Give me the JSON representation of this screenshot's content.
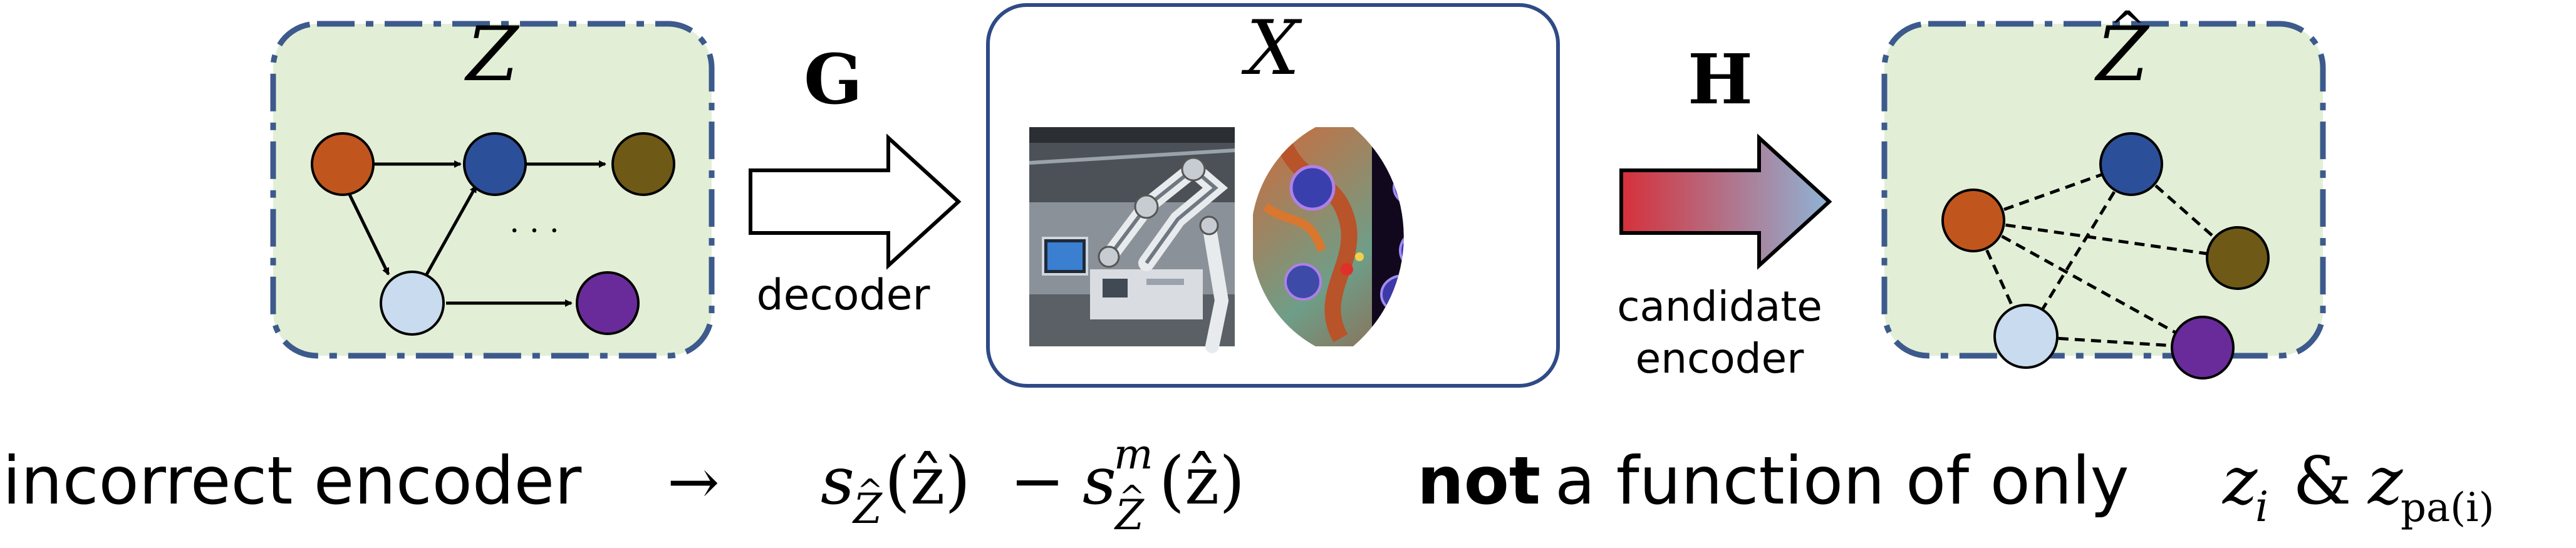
{
  "colors": {
    "panel_fill": "#e2efd6",
    "panel_border": "#3d5a8c",
    "x_box_border": "#2f4a86",
    "node_orange": "#c0561e",
    "node_blue": "#2c4f99",
    "node_olive": "#6e5a16",
    "node_lightblue": "#c8dbef",
    "node_purple": "#6a2b9a",
    "arrow_h_start": "#d6303a",
    "arrow_h_end": "#8fb3d6"
  },
  "latent_panel": {
    "label": "Z",
    "ellipsis": "· · ·"
  },
  "decoder": {
    "symbol": "G",
    "caption": "decoder"
  },
  "observation": {
    "label": "X",
    "images": [
      "robot-arm-photo",
      "biology-illustration"
    ]
  },
  "encoder": {
    "symbol": "H",
    "caption_line1": "candidate",
    "caption_line2": "encoder"
  },
  "estimate_panel": {
    "label": "Z",
    "hat": "^"
  },
  "bottom_text": {
    "left": "incorrect encoder",
    "arrow": "→",
    "s": "s",
    "sub_Z": "Z",
    "arg": "(ẑ)",
    "minus": "−",
    "sup_m": "m",
    "bold_not": "not",
    "rest": "a function of only",
    "z_i_base": "z",
    "z_i_sub": "i",
    "amp": "&",
    "z_pa_base": "z",
    "z_pa_sub": "pa(i)"
  }
}
